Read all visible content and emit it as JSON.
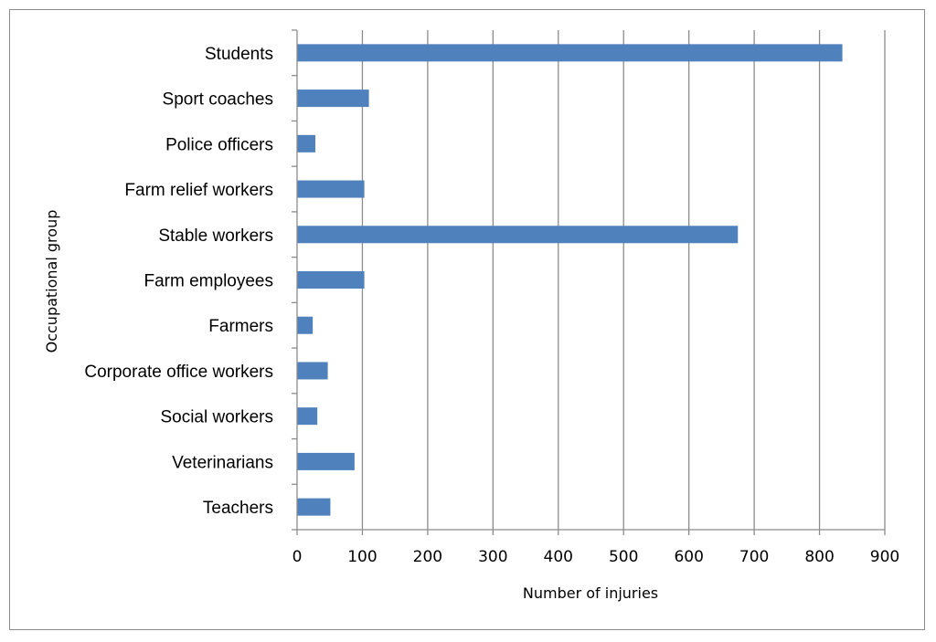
{
  "chart_data": {
    "type": "bar",
    "orientation": "horizontal",
    "categories": [
      "Students",
      "Sport coaches",
      "Police officers",
      "Farm relief workers",
      "Stable workers",
      "Farm employees",
      "Farmers",
      "Corporate office workers",
      "Social workers",
      "Veterinarians",
      "Teachers"
    ],
    "values": [
      835,
      110,
      28,
      103,
      675,
      103,
      24,
      47,
      31,
      88,
      51
    ],
    "title": "",
    "xlabel": "Number of injuries",
    "ylabel": "Occupational group",
    "xlim": [
      0,
      900
    ],
    "xticks": [
      "0",
      "100",
      "200",
      "300",
      "400",
      "500",
      "600",
      "700",
      "800",
      "900"
    ],
    "grid": "vertical",
    "legend": "none",
    "bar_color": "#4f81bd"
  }
}
